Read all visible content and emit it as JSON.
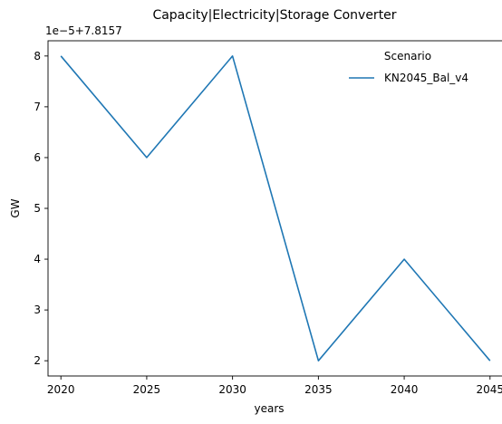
{
  "chart_data": {
    "type": "line",
    "title": "Capacity|Electricity|Storage Converter",
    "xlabel": "years",
    "ylabel": "GW",
    "axis_offset_label": "1e−5+7.8157",
    "x": [
      2020,
      2025,
      2030,
      2035,
      2040,
      2045
    ],
    "series": [
      {
        "name": "KN2045_Bal_v4",
        "color": "#1f77b4",
        "values": [
          8,
          6,
          8,
          2,
          4,
          2
        ]
      }
    ],
    "x_ticks": [
      "2020",
      "2025",
      "2030",
      "2035",
      "2040",
      "2045"
    ],
    "y_ticks": [
      "2",
      "3",
      "4",
      "5",
      "6",
      "7",
      "8"
    ],
    "xlim": [
      2019.25,
      2045.75
    ],
    "ylim": [
      1.7,
      8.3
    ],
    "grid": false,
    "legend": {
      "title": "Scenario",
      "placement": "top-right"
    }
  }
}
